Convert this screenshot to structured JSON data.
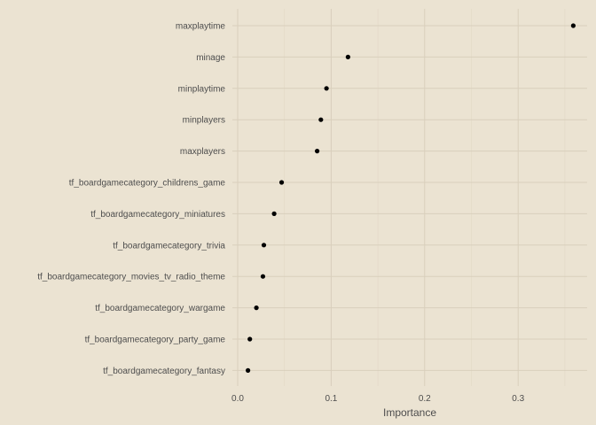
{
  "colors": {
    "background": "#EBE3D2",
    "grid_major": "#D9CFBC",
    "grid_minor": "#E3DAC7",
    "point": "#000000",
    "text": "#4D4D4D"
  },
  "chart_data": {
    "type": "scatter",
    "title": "",
    "xlabel": "Importance",
    "ylabel": "",
    "xlim": [
      -0.01,
      0.365
    ],
    "x_ticks": [
      0.0,
      0.1,
      0.2,
      0.3
    ],
    "x_tick_labels": [
      "0.0",
      "0.1",
      "0.2",
      "0.3"
    ],
    "grid": true,
    "legend": "none",
    "categories": [
      "maxplaytime",
      "minage",
      "minplaytime",
      "minplayers",
      "maxplayers",
      "tf_boardgamecategory_childrens_game",
      "tf_boardgamecategory_miniatures",
      "tf_boardgamecategory_trivia",
      "tf_boardgamecategory_movies_tv_radio_theme",
      "tf_boardgamecategory_wargame",
      "tf_boardgamecategory_party_game",
      "tf_boardgamecategory_fantasy"
    ],
    "values": [
      0.359,
      0.118,
      0.095,
      0.089,
      0.085,
      0.047,
      0.039,
      0.028,
      0.027,
      0.02,
      0.013,
      0.011
    ]
  }
}
